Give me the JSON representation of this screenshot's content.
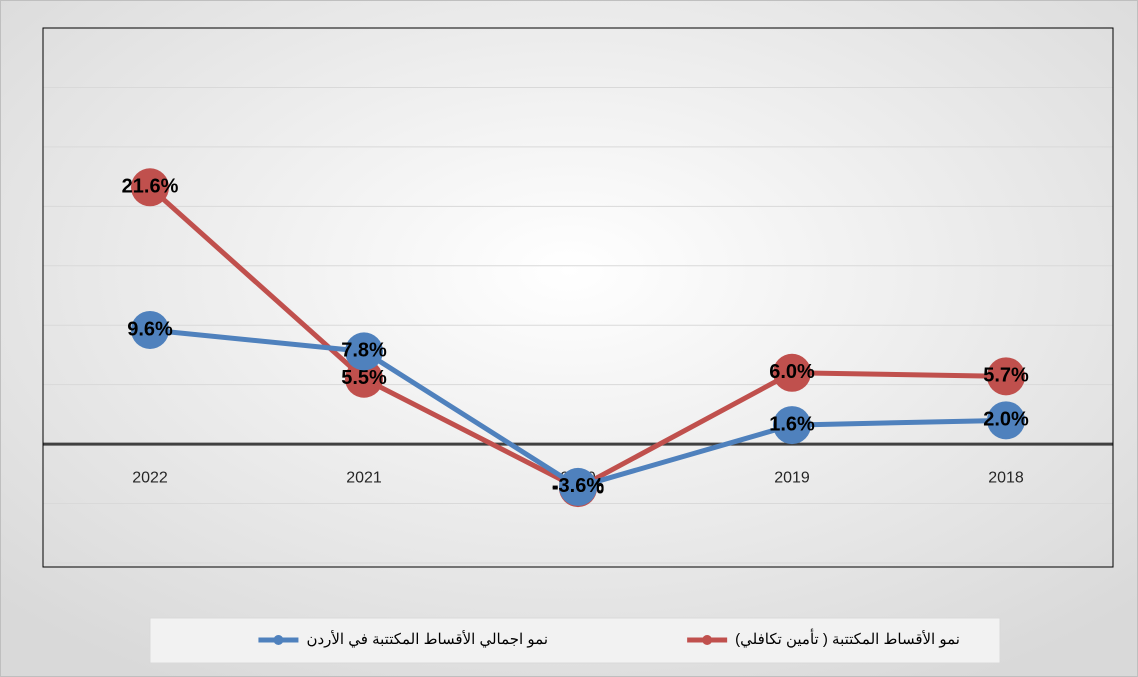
{
  "chart_data": {
    "type": "line",
    "categories": [
      "2022",
      "2021",
      "2020",
      "2019",
      "2018"
    ],
    "series": [
      {
        "name": "نمو الأقساط المكتتبة ( تأمين تكافلي)",
        "color": "#c0504d",
        "values": [
          21.6,
          5.5,
          -3.7,
          6.0,
          5.7
        ],
        "value_labels": [
          "21.6%",
          "5.5%",
          "-3.7%",
          "6.0%",
          "5.7%"
        ]
      },
      {
        "name": "نمو اجمالي الأقساط المكتتبة في الأردن",
        "color": "#4f81bd",
        "values": [
          9.6,
          7.8,
          -3.6,
          1.6,
          2.0
        ],
        "value_labels": [
          "9.6%",
          "7.8%",
          "-3.6%",
          "1.6%",
          "2.0%"
        ]
      }
    ],
    "ylim": [
      -10,
      35
    ],
    "yticks": [
      -10,
      -5,
      0,
      5,
      10,
      15,
      20,
      25,
      30,
      35
    ],
    "grid": true
  }
}
